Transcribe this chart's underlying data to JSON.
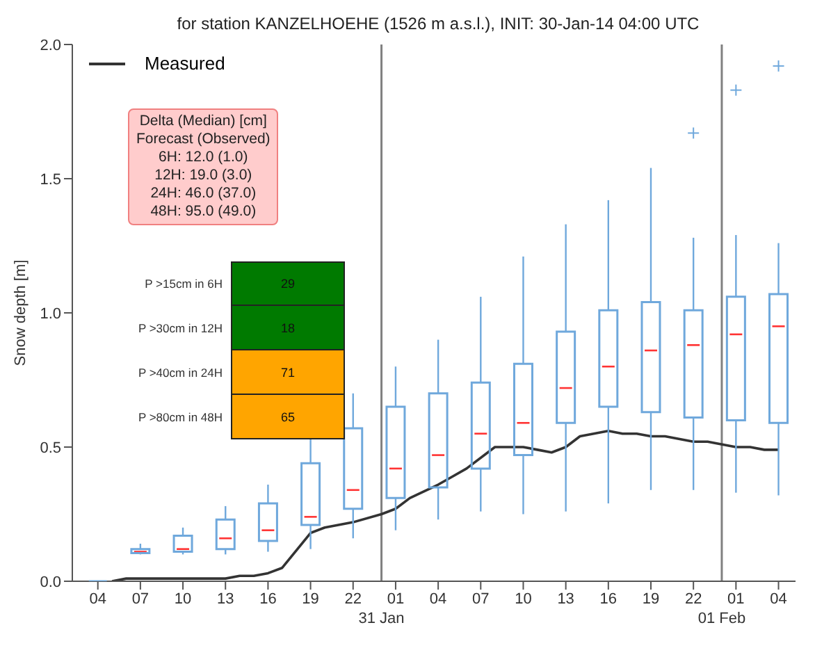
{
  "chart_data": {
    "type": "box",
    "title": "for station KANZELHOEHE (1526 m a.s.l.), INIT: 30-Jan-14 04:00 UTC",
    "ylabel": "Snow depth [m]",
    "xlim": [
      "--01-30T02:12",
      "--02-01T05:12"
    ],
    "xticks": [
      {
        "value": "--01-30T04:00",
        "label": "04"
      },
      {
        "value": "--01-30T07:00",
        "label": "07"
      },
      {
        "value": "--01-30T10:00",
        "label": "10"
      },
      {
        "value": "--01-30T13:00",
        "label": "13"
      },
      {
        "value": "--01-30T16:00",
        "label": "16"
      },
      {
        "value": "--01-30T19:00",
        "label": "19"
      },
      {
        "value": "--01-30T22:00",
        "label": "22"
      },
      {
        "value": "--01-31T01:00",
        "label": "01"
      },
      {
        "value": "--01-31T04:00",
        "label": "04"
      },
      {
        "value": "--01-31T07:00",
        "label": "07"
      },
      {
        "value": "--01-31T10:00",
        "label": "10"
      },
      {
        "value": "--01-31T13:00",
        "label": "13"
      },
      {
        "value": "--01-31T16:00",
        "label": "16"
      },
      {
        "value": "--01-31T19:00",
        "label": "19"
      },
      {
        "value": "--01-31T22:00",
        "label": "22"
      },
      {
        "value": "--02-01T01:00",
        "label": "01"
      },
      {
        "value": "--02-01T04:00",
        "label": "04"
      }
    ],
    "ylim": [
      0,
      2
    ],
    "yticks": [
      {
        "value": 0,
        "label": "0.0"
      },
      {
        "value": 0.5,
        "label": "0.5"
      },
      {
        "value": 1,
        "label": "1.0"
      },
      {
        "value": 1.5,
        "label": "1.5"
      },
      {
        "value": 2,
        "label": "2.0"
      }
    ],
    "legend": "top left",
    "series": [
      {
        "color": "#6fa8dc",
        "x": [
          "--01-30T04:00",
          "--01-30T07:00",
          "--01-30T10:00",
          "--01-30T13:00",
          "--01-30T16:00",
          "--01-30T19:00",
          "--01-30T22:00",
          "--01-31T01:00",
          "--01-31T04:00",
          "--01-31T07:00",
          "--01-31T10:00",
          "--01-31T13:00",
          "--01-31T16:00",
          "--01-31T19:00",
          "--01-31T22:00",
          "--02-01T01:00",
          "--02-01T04:00"
        ],
        "boxes": [
          {
            "low": 0,
            "q1": 0,
            "median": 0,
            "q3": 0,
            "high": 0
          },
          {
            "low": 0.1,
            "q1": 0.105,
            "median": 0.11,
            "q3": 0.12,
            "high": 0.14
          },
          {
            "low": 0.1,
            "q1": 0.11,
            "median": 0.12,
            "q3": 0.17,
            "high": 0.2
          },
          {
            "low": 0.1,
            "q1": 0.12,
            "median": 0.16,
            "q3": 0.23,
            "high": 0.28
          },
          {
            "low": 0.11,
            "q1": 0.15,
            "median": 0.19,
            "q3": 0.29,
            "high": 0.36
          },
          {
            "low": 0.12,
            "q1": 0.21,
            "median": 0.24,
            "q3": 0.44,
            "high": 0.55
          },
          {
            "low": 0.16,
            "q1": 0.27,
            "median": 0.34,
            "q3": 0.57,
            "high": 0.7
          },
          {
            "low": 0.19,
            "q1": 0.31,
            "median": 0.42,
            "q3": 0.65,
            "high": 0.8
          },
          {
            "low": 0.23,
            "q1": 0.35,
            "median": 0.47,
            "q3": 0.7,
            "high": 0.9
          },
          {
            "low": 0.26,
            "q1": 0.42,
            "median": 0.55,
            "q3": 0.74,
            "high": 1.06
          },
          {
            "low": 0.25,
            "q1": 0.47,
            "median": 0.59,
            "q3": 0.81,
            "high": 1.21
          },
          {
            "low": 0.26,
            "q1": 0.59,
            "median": 0.72,
            "q3": 0.93,
            "high": 1.33
          },
          {
            "low": 0.29,
            "q1": 0.65,
            "median": 0.8,
            "q3": 1.01,
            "high": 1.42
          },
          {
            "low": 0.34,
            "q1": 0.63,
            "median": 0.86,
            "q3": 1.04,
            "high": 1.54
          },
          {
            "low": 0.34,
            "q1": 0.61,
            "median": 0.88,
            "q3": 1.01,
            "high": 1.28,
            "outliers": [
              1.67
            ]
          },
          {
            "low": 0.33,
            "q1": 0.6,
            "median": 0.92,
            "q3": 1.06,
            "high": 1.29,
            "outliers": [
              1.83
            ]
          },
          {
            "low": 0.32,
            "q1": 0.59,
            "median": 0.95,
            "q3": 1.07,
            "high": 1.26,
            "outliers": [
              1.92
            ]
          }
        ]
      },
      {
        "type": "line",
        "name": "Measured",
        "color": "#333333",
        "x": [
          "--01-30T05:00",
          "--01-30T06:00",
          "--01-30T13:00",
          "--01-30T14:00",
          "--01-30T15:00",
          "--01-30T16:00",
          "--01-30T17:00",
          "--01-30T19:00",
          "--01-30T20:00",
          "--01-30T22:00",
          "--01-31T00:00",
          "--01-31T01:00",
          "--01-31T02:00",
          "--01-31T04:00",
          "--01-31T05:00",
          "--01-31T06:00",
          "--01-31T08:00",
          "--01-31T10:00",
          "--01-31T11:00",
          "--01-31T12:00",
          "--01-31T13:00",
          "--01-31T14:00",
          "--01-31T16:00",
          "--01-31T17:00",
          "--01-31T18:00",
          "--01-31T19:00",
          "--01-31T20:00",
          "--01-31T22:00",
          "--01-31T23:00",
          "--02-01T01:00",
          "--02-01T02:00",
          "--02-01T03:00",
          "--02-01T04:00"
        ],
        "values": [
          0,
          0.01,
          0.01,
          0.02,
          0.02,
          0.03,
          0.05,
          0.18,
          0.2,
          0.22,
          0.25,
          0.27,
          0.31,
          0.36,
          0.39,
          0.42,
          0.5,
          0.5,
          0.49,
          0.48,
          0.5,
          0.54,
          0.56,
          0.55,
          0.55,
          0.54,
          0.54,
          0.52,
          0.52,
          0.5,
          0.5,
          0.49,
          0.49
        ]
      }
    ],
    "ref_lines": [
      {
        "axis": "x",
        "value": "--01-31T00:00",
        "label": "31 Jan",
        "color": "#808080"
      },
      {
        "axis": "x",
        "value": "--02-01T00:00",
        "label": "01 Feb",
        "color": "#808080"
      }
    ],
    "annotations": [
      "Delta (Median) [cm]",
      "Forecast (Observed)",
      "6H: 12.0 (1.0)",
      "12H: 19.0 (3.0)",
      "24H: 46.0 (37.0)",
      "48H: 95.0 (49.0)",
      "P >15cm in 6H",
      "29",
      "P >30cm in 12H",
      "18",
      "P >40cm in 24H",
      "71",
      "P >80cm in 48H",
      "65"
    ]
  }
}
